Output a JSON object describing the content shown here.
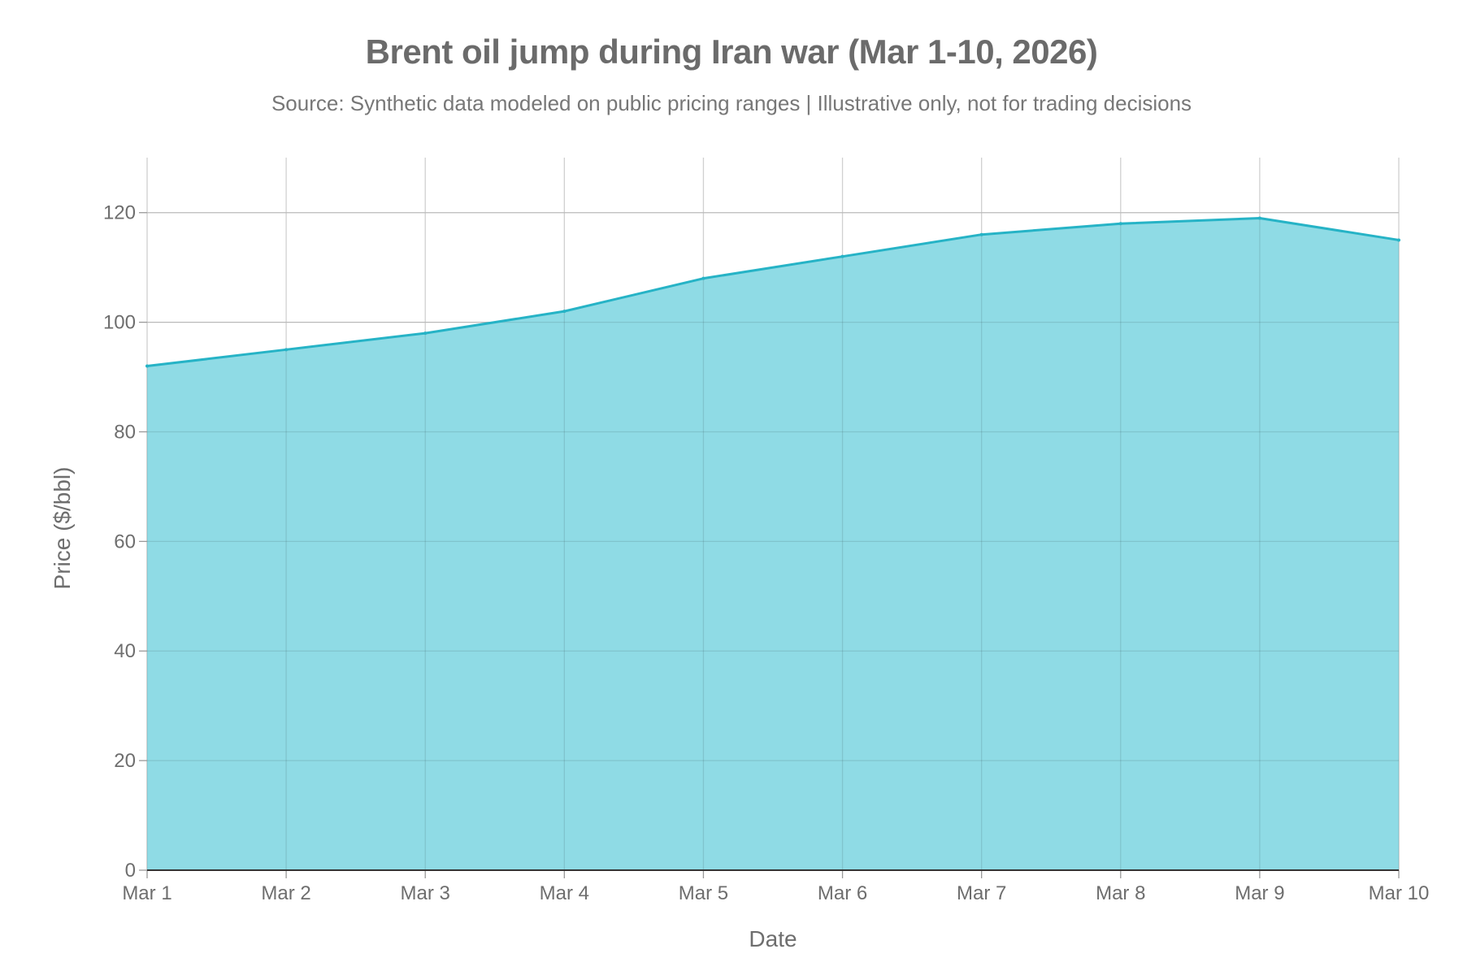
{
  "chart_data": {
    "type": "area",
    "title": "Brent oil jump during Iran war (Mar 1-10, 2026)",
    "subtitle": "Source: Synthetic data modeled on public pricing ranges | Illustrative only, not for trading decisions",
    "xlabel": "Date",
    "ylabel": "Price ($/bbl)",
    "categories": [
      "Mar 1",
      "Mar 2",
      "Mar 3",
      "Mar 4",
      "Mar 5",
      "Mar 6",
      "Mar 7",
      "Mar 8",
      "Mar 9",
      "Mar 10"
    ],
    "values": [
      92,
      95,
      98,
      102,
      108,
      112,
      116,
      118,
      119,
      115
    ],
    "ylim": [
      0,
      125
    ],
    "yticks": [
      0,
      20,
      40,
      60,
      80,
      100,
      120
    ],
    "grid": true,
    "legend": "none",
    "colors": {
      "line": "#26b3c6",
      "fill": "#8fdbe5",
      "grid": "#d0d0d0",
      "axis": "#333333"
    }
  }
}
